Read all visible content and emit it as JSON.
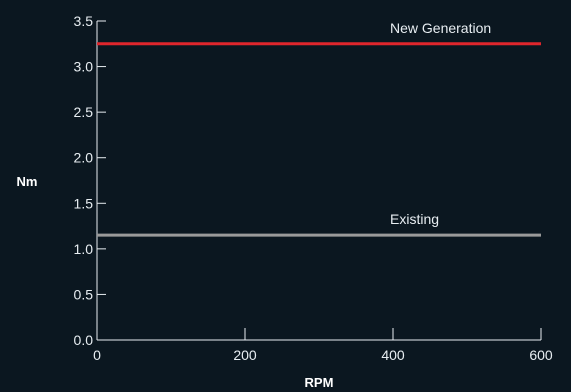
{
  "chart_data": {
    "type": "line",
    "xlabel": "RPM",
    "ylabel": "Nm",
    "xlim": [
      0,
      600
    ],
    "ylim": [
      0,
      3.5
    ],
    "x_ticks": [
      0,
      200,
      400,
      600
    ],
    "y_ticks": [
      0.0,
      0.5,
      1.0,
      1.5,
      2.0,
      2.5,
      3.0,
      3.5
    ],
    "x_tick_labels": [
      "0",
      "200",
      "400",
      "600"
    ],
    "y_tick_labels": [
      "0.0",
      "0.5",
      "1.0",
      "1.5",
      "2.0",
      "2.5",
      "3.0",
      "3.5"
    ],
    "grid": false,
    "series": [
      {
        "name": "New Generation",
        "color": "#e0262c",
        "x": [
          0,
          600
        ],
        "y": [
          3.25,
          3.25
        ]
      },
      {
        "name": "Existing",
        "color": "#9a9a9a",
        "x": [
          0,
          600
        ],
        "y": [
          1.15,
          1.15
        ]
      }
    ]
  }
}
